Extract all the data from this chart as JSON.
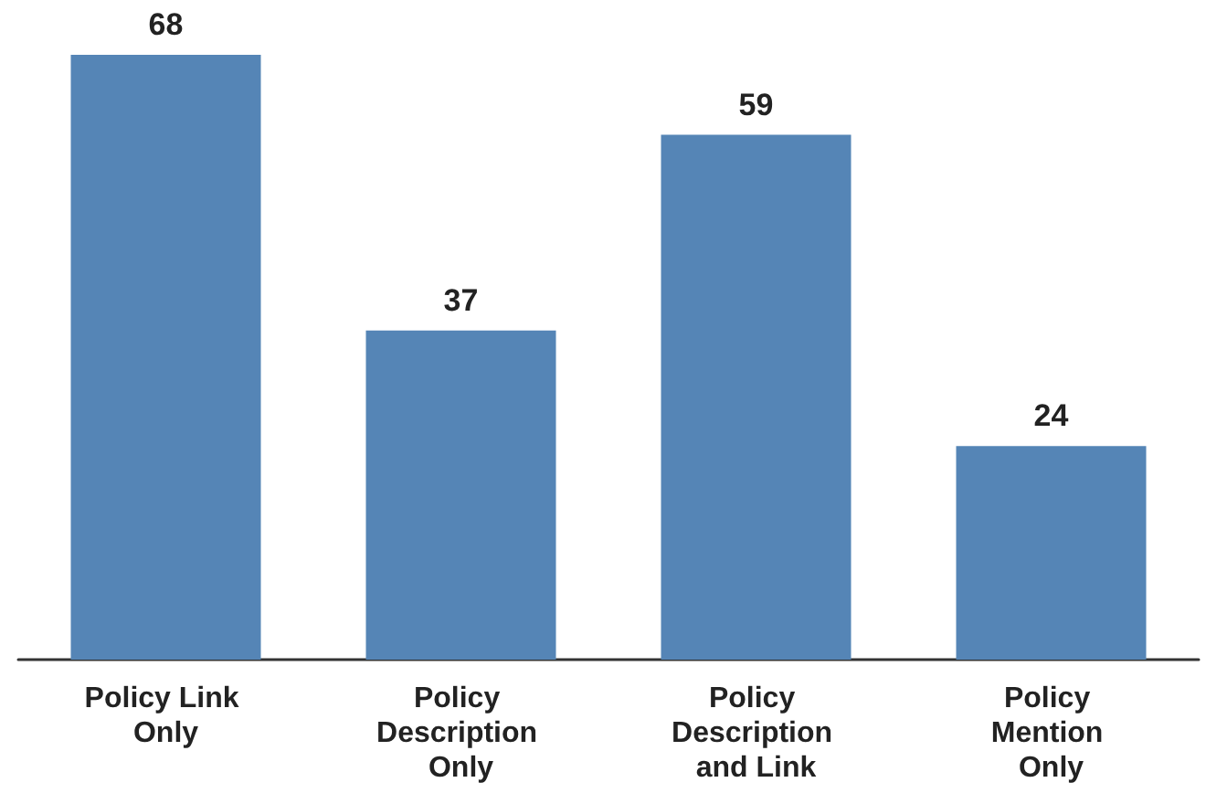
{
  "chart_data": {
    "type": "bar",
    "categories": [
      "Policy Link Only",
      "Policy Description Only",
      "Policy Description and Link",
      "Policy Mention Only"
    ],
    "values": [
      68,
      37,
      59,
      24
    ],
    "color": "#5585b6",
    "data_labels": true,
    "grid": false
  }
}
